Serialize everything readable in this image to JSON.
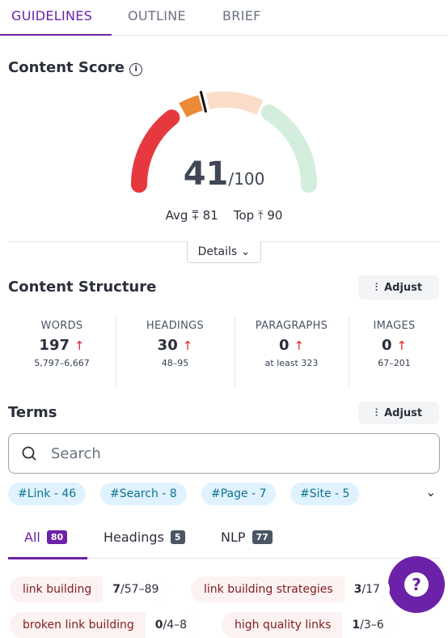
{
  "tabs": [
    "GUIDELINES",
    "OUTLINE",
    "BRIEF"
  ],
  "content_score": {
    "title": "Content Score",
    "score": "41",
    "max": "/100",
    "avg_label": "Avg",
    "avg": "81",
    "top_label": "Top",
    "top": "90",
    "details": "Details"
  },
  "structure": {
    "title": "Content Structure",
    "adjust": "Adjust",
    "stats": [
      {
        "label": "WORDS",
        "value": "197",
        "range": "5,797–6,667"
      },
      {
        "label": "HEADINGS",
        "value": "30",
        "range": "48–95"
      },
      {
        "label": "PARAGRAPHS",
        "value": "0",
        "range": "at least 323"
      },
      {
        "label": "IMAGES",
        "value": "0",
        "range": "67–201"
      }
    ]
  },
  "terms": {
    "title": "Terms",
    "adjust": "Adjust",
    "search_placeholder": "Search",
    "topics": [
      "#Link - 46",
      "#Search - 8",
      "#Page - 7",
      "#Site - 5"
    ],
    "filters": [
      {
        "label": "All",
        "count": "80"
      },
      {
        "label": "Headings",
        "count": "5"
      },
      {
        "label": "NLP",
        "count": "77"
      }
    ],
    "items": [
      {
        "term": "link building",
        "count": "7",
        "range": "/57–89"
      },
      {
        "term": "link building strategies",
        "count": "3",
        "range": "/17"
      },
      {
        "term": "broken link building",
        "count": "0",
        "range": "/4–8"
      },
      {
        "term": "high quality links",
        "count": "1",
        "range": "/3–6"
      }
    ]
  }
}
